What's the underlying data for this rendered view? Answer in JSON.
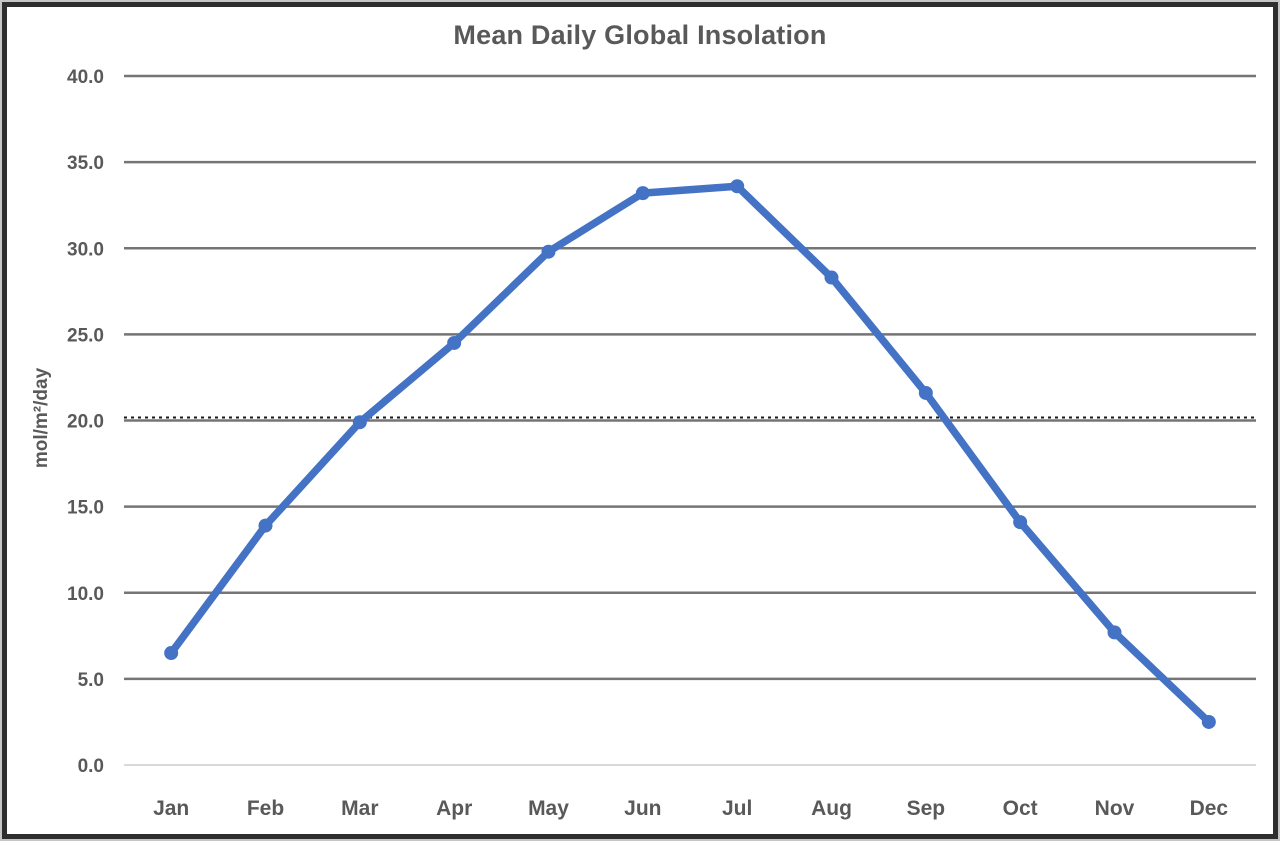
{
  "chart_data": {
    "type": "line",
    "title": "Mean Daily Global Insolation",
    "ylabel": "mol/m²/day",
    "xlabel": "",
    "categories": [
      "Jan",
      "Feb",
      "Mar",
      "Apr",
      "May",
      "Jun",
      "Jul",
      "Aug",
      "Sep",
      "Oct",
      "Nov",
      "Dec"
    ],
    "series": [
      {
        "name": "Mean Daily Global Insolation",
        "values": [
          6.5,
          13.9,
          19.9,
          24.5,
          29.8,
          33.2,
          33.6,
          28.3,
          21.6,
          14.1,
          7.7,
          2.5
        ]
      }
    ],
    "ylim": [
      0.0,
      40.0
    ],
    "ytick_step": 5.0,
    "ytick_labels": [
      "0.0",
      "5.0",
      "10.0",
      "15.0",
      "20.0",
      "25.0",
      "30.0",
      "35.0",
      "40.0"
    ],
    "grid": "horizontal",
    "legend": "none",
    "reference_line": {
      "value": 20.0,
      "style": "dotted"
    },
    "colors": {
      "line": "#4472C4",
      "marker": "#4472C4",
      "grid": "#757575",
      "zero_line": "#d9d9d9",
      "reference": "#1a1a1a",
      "text": "#595959",
      "frame": "#2e2e2e",
      "background": "#ffffff"
    }
  }
}
